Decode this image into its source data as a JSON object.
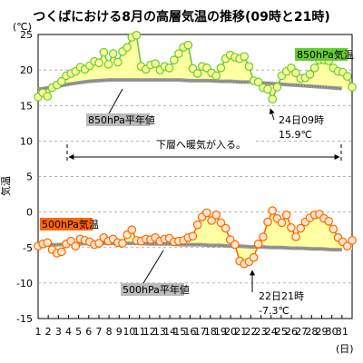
{
  "title": "つくばにおける8月の高層気温の推移(09時と21時)",
  "chart_data": {
    "type": "line",
    "yunit": "(℃)",
    "ylabel": "気温",
    "xunit": "(日)",
    "ylim": [
      -15,
      25
    ],
    "yticks": [
      25,
      20,
      15,
      10,
      5,
      0,
      -5,
      -10,
      -15
    ],
    "xticks": [
      1,
      2,
      3,
      4,
      5,
      6,
      7,
      8,
      9,
      10,
      11,
      12,
      13,
      14,
      15,
      16,
      17,
      18,
      19,
      20,
      21,
      22,
      23,
      24,
      25,
      26,
      27,
      28,
      29,
      30,
      31
    ],
    "series": [
      {
        "name": "850hPa気温",
        "color": "#66cc33",
        "normal_color": "#999999",
        "fill_color": "#ffff99",
        "values": [
          16.2,
          16.8,
          16.3,
          17.5,
          17.9,
          18.4,
          19.2,
          19.5,
          19.8,
          20.4,
          20.1,
          20.6,
          21.2,
          21.0,
          22.5,
          20.8,
          22.3,
          21.1,
          22.6,
          23.2,
          24.6,
          24.9,
          20.5,
          20.1,
          20.7,
          20.9,
          20.0,
          20.5,
          20.3,
          21.4,
          22.3,
          23.2,
          23.5,
          20.2,
          19.5,
          20.5,
          20.3,
          19.6,
          19.2,
          20.3,
          21.6,
          22.1,
          21.8,
          21.6,
          21.9,
          20.5,
          18.5,
          18.3,
          17.5,
          17.3,
          15.9,
          17.6,
          19.2,
          19.8,
          20.3,
          19.6,
          18.8,
          18.9,
          19.4,
          20.3,
          21.4,
          21.4,
          21.3,
          20.3,
          19.8,
          19.7,
          19.1,
          17.6
        ],
        "normal": [
          17.3,
          17.5,
          17.7,
          18.0,
          18.2,
          18.4,
          18.5,
          18.6,
          18.6,
          18.6,
          18.6,
          18.6,
          18.6,
          18.6,
          18.6,
          18.5,
          18.5,
          18.5,
          18.4,
          18.4,
          18.3,
          18.3,
          18.2,
          18.1,
          18.0,
          17.9,
          17.8,
          17.7,
          17.6,
          17.5,
          17.4
        ]
      },
      {
        "name": "500hPa気温",
        "color": "#ff6600",
        "normal_color": "#999999",
        "fill_color": "#ffff99",
        "values": [
          -4.8,
          -4.5,
          -4.3,
          -5.3,
          -5.8,
          -5.6,
          -4.5,
          -4.1,
          -4.8,
          -3.8,
          -4.0,
          -4.2,
          -4.6,
          -4.4,
          -3.6,
          -4.1,
          -3.8,
          -4.3,
          -4.4,
          -3.2,
          -2.5,
          -4.0,
          -4.1,
          -3.8,
          -3.9,
          -3.6,
          -4.1,
          -3.8,
          -3.7,
          -4.2,
          -4.1,
          -4.0,
          -3.6,
          -3.4,
          -1.8,
          -0.7,
          -0.1,
          -1.2,
          -0.4,
          -1.5,
          -2.3,
          -3.9,
          -4.6,
          -6.9,
          -7.3,
          -7.0,
          -6.4,
          -4.5,
          -3.5,
          -1.4,
          0.2,
          -0.9,
          -1.5,
          -0.4,
          -2.2,
          -3.5,
          -2.3,
          -1.4,
          -0.8,
          -0.4,
          -0.3,
          -0.9,
          -1.3,
          -2.4,
          -3.6,
          -4.2,
          -4.8,
          -4.0
        ],
        "normal": [
          -4.7,
          -4.6,
          -4.6,
          -4.5,
          -4.5,
          -4.4,
          -4.4,
          -4.4,
          -4.4,
          -4.4,
          -4.4,
          -4.5,
          -4.5,
          -4.5,
          -4.6,
          -4.6,
          -4.6,
          -4.7,
          -4.7,
          -4.8,
          -4.8,
          -4.9,
          -4.9,
          -5.0,
          -5.0,
          -5.1,
          -5.1,
          -5.2,
          -5.2,
          -5.3,
          -5.3
        ]
      }
    ],
    "legend_850": "850hPa気温",
    "legend_500": "500hPa気温",
    "annotations": {
      "normal_850": "850hPa平年値",
      "normal_500": "500hPa平年値",
      "min850_date": "24日09時",
      "min850_value": "15.9℃",
      "min500_date": "22日21時",
      "min500_value": "-7.3℃",
      "warm_air": "下層へ暖気が入る。"
    }
  }
}
